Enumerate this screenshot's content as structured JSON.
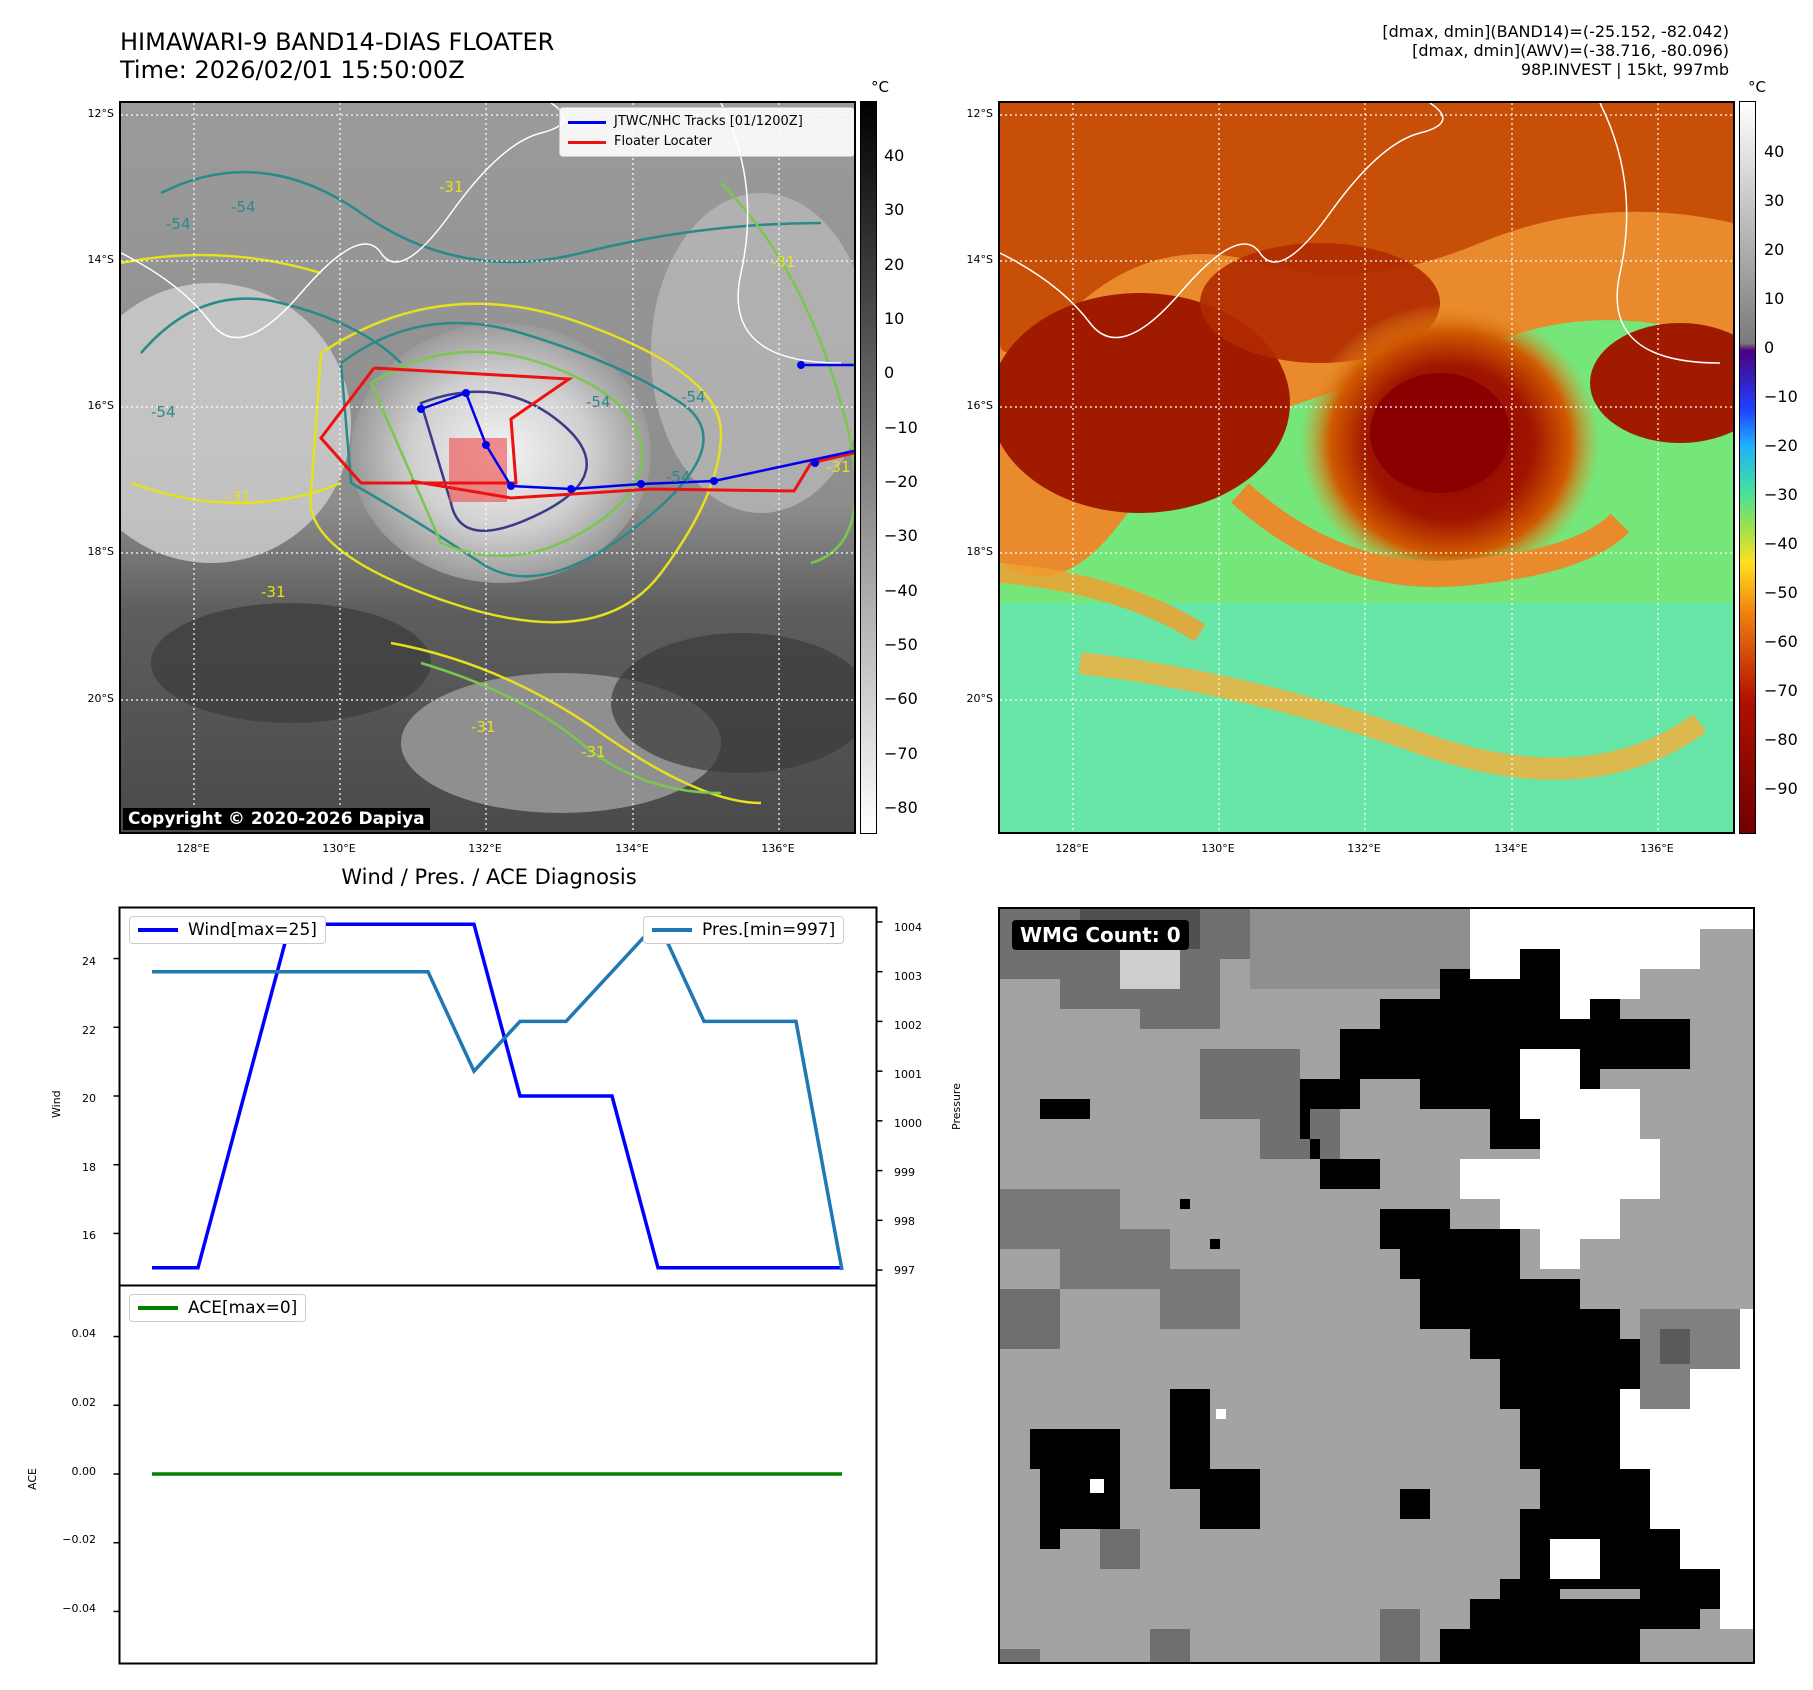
{
  "header": {
    "title_line1": "HIMAWARI-9 BAND14-DIAS FLOATER",
    "title_line2": "Time: 2026/02/01 15:50:00Z",
    "info_line1": "[dmax, dmin](BAND14)=(-25.152, -82.042)",
    "info_line2": "[dmax, dmin](AWV)=(-38.716, -80.096)",
    "info_line3": "98P.INVEST | 15kt, 997mb"
  },
  "map_axes": {
    "lat_labels": [
      "12°S",
      "14°S",
      "16°S",
      "18°S",
      "20°S"
    ],
    "lon_labels": [
      "128°E",
      "130°E",
      "132°E",
      "134°E",
      "136°E"
    ]
  },
  "ir_panel": {
    "legend_track": "JTWC/NHC Tracks [01/1200Z]",
    "legend_floater": "Floater Locater",
    "copyright": "Copyright © 2020-2026 Dapiya",
    "contour_labels": [
      "-31",
      "-54",
      "-54",
      "-54",
      "-54",
      "-31",
      "-31",
      "-54",
      "-31",
      "-54",
      "-31",
      "-31",
      "-31"
    ],
    "colorbar_unit": "°C",
    "colorbar_ticks": [
      "40",
      "30",
      "20",
      "10",
      "0",
      "−10",
      "−20",
      "−30",
      "−40",
      "−50",
      "−60",
      "−70",
      "−80"
    ]
  },
  "enhanced_panel": {
    "colorbar_unit": "°C",
    "colorbar_ticks": [
      "40",
      "30",
      "20",
      "10",
      "0",
      "−10",
      "−20",
      "−30",
      "−40",
      "−50",
      "−60",
      "−70",
      "−80",
      "−90"
    ]
  },
  "diagnosis": {
    "title": "Wind / Pres. / ACE Diagnosis",
    "wind_label": "Wind",
    "pressure_label": "Pressure",
    "ace_label": "ACE",
    "wind_legend": "Wind[max=25]",
    "pres_legend": "Pres.[min=997]",
    "ace_legend": "ACE[max=0]",
    "wind_ticks": [
      "24",
      "22",
      "20",
      "18",
      "16"
    ],
    "pres_ticks": [
      "1004",
      "1003",
      "1002",
      "1001",
      "1000",
      "999",
      "998",
      "997"
    ],
    "ace_ticks": [
      "0.04",
      "0.02",
      "0.00",
      "−0.02",
      "−0.04"
    ]
  },
  "wmg_panel": {
    "label": "WMG Count: 0"
  },
  "chart_data": [
    {
      "type": "line",
      "title": "Wind / Pres. / ACE Diagnosis",
      "series": [
        {
          "name": "Wind[max=25]",
          "axis": "left",
          "color": "#0000ff",
          "values": [
            15,
            15,
            20,
            25,
            25,
            25,
            25,
            25,
            20,
            20,
            20,
            15,
            15,
            15,
            15,
            15
          ]
        },
        {
          "name": "Pres.[min=997]",
          "axis": "right",
          "color": "#1f77b4",
          "values": [
            1003,
            1003,
            1003,
            1003,
            1003,
            1003,
            1003,
            1001,
            1002,
            1002,
            1003,
            1004,
            1002,
            1002,
            1002,
            997
          ]
        }
      ],
      "ylim_left": [
        14.5,
        25.5
      ],
      "ylim_right": [
        996.7,
        1004.3
      ],
      "ylabel": "Wind",
      "ylabel_right": "Pressure"
    },
    {
      "type": "line",
      "series": [
        {
          "name": "ACE[max=0]",
          "color": "#008000",
          "values": [
            0,
            0,
            0,
            0,
            0,
            0,
            0,
            0,
            0,
            0,
            0,
            0,
            0,
            0,
            0,
            0
          ]
        }
      ],
      "ylim": [
        -0.055,
        0.055
      ],
      "ylabel": "ACE"
    }
  ]
}
